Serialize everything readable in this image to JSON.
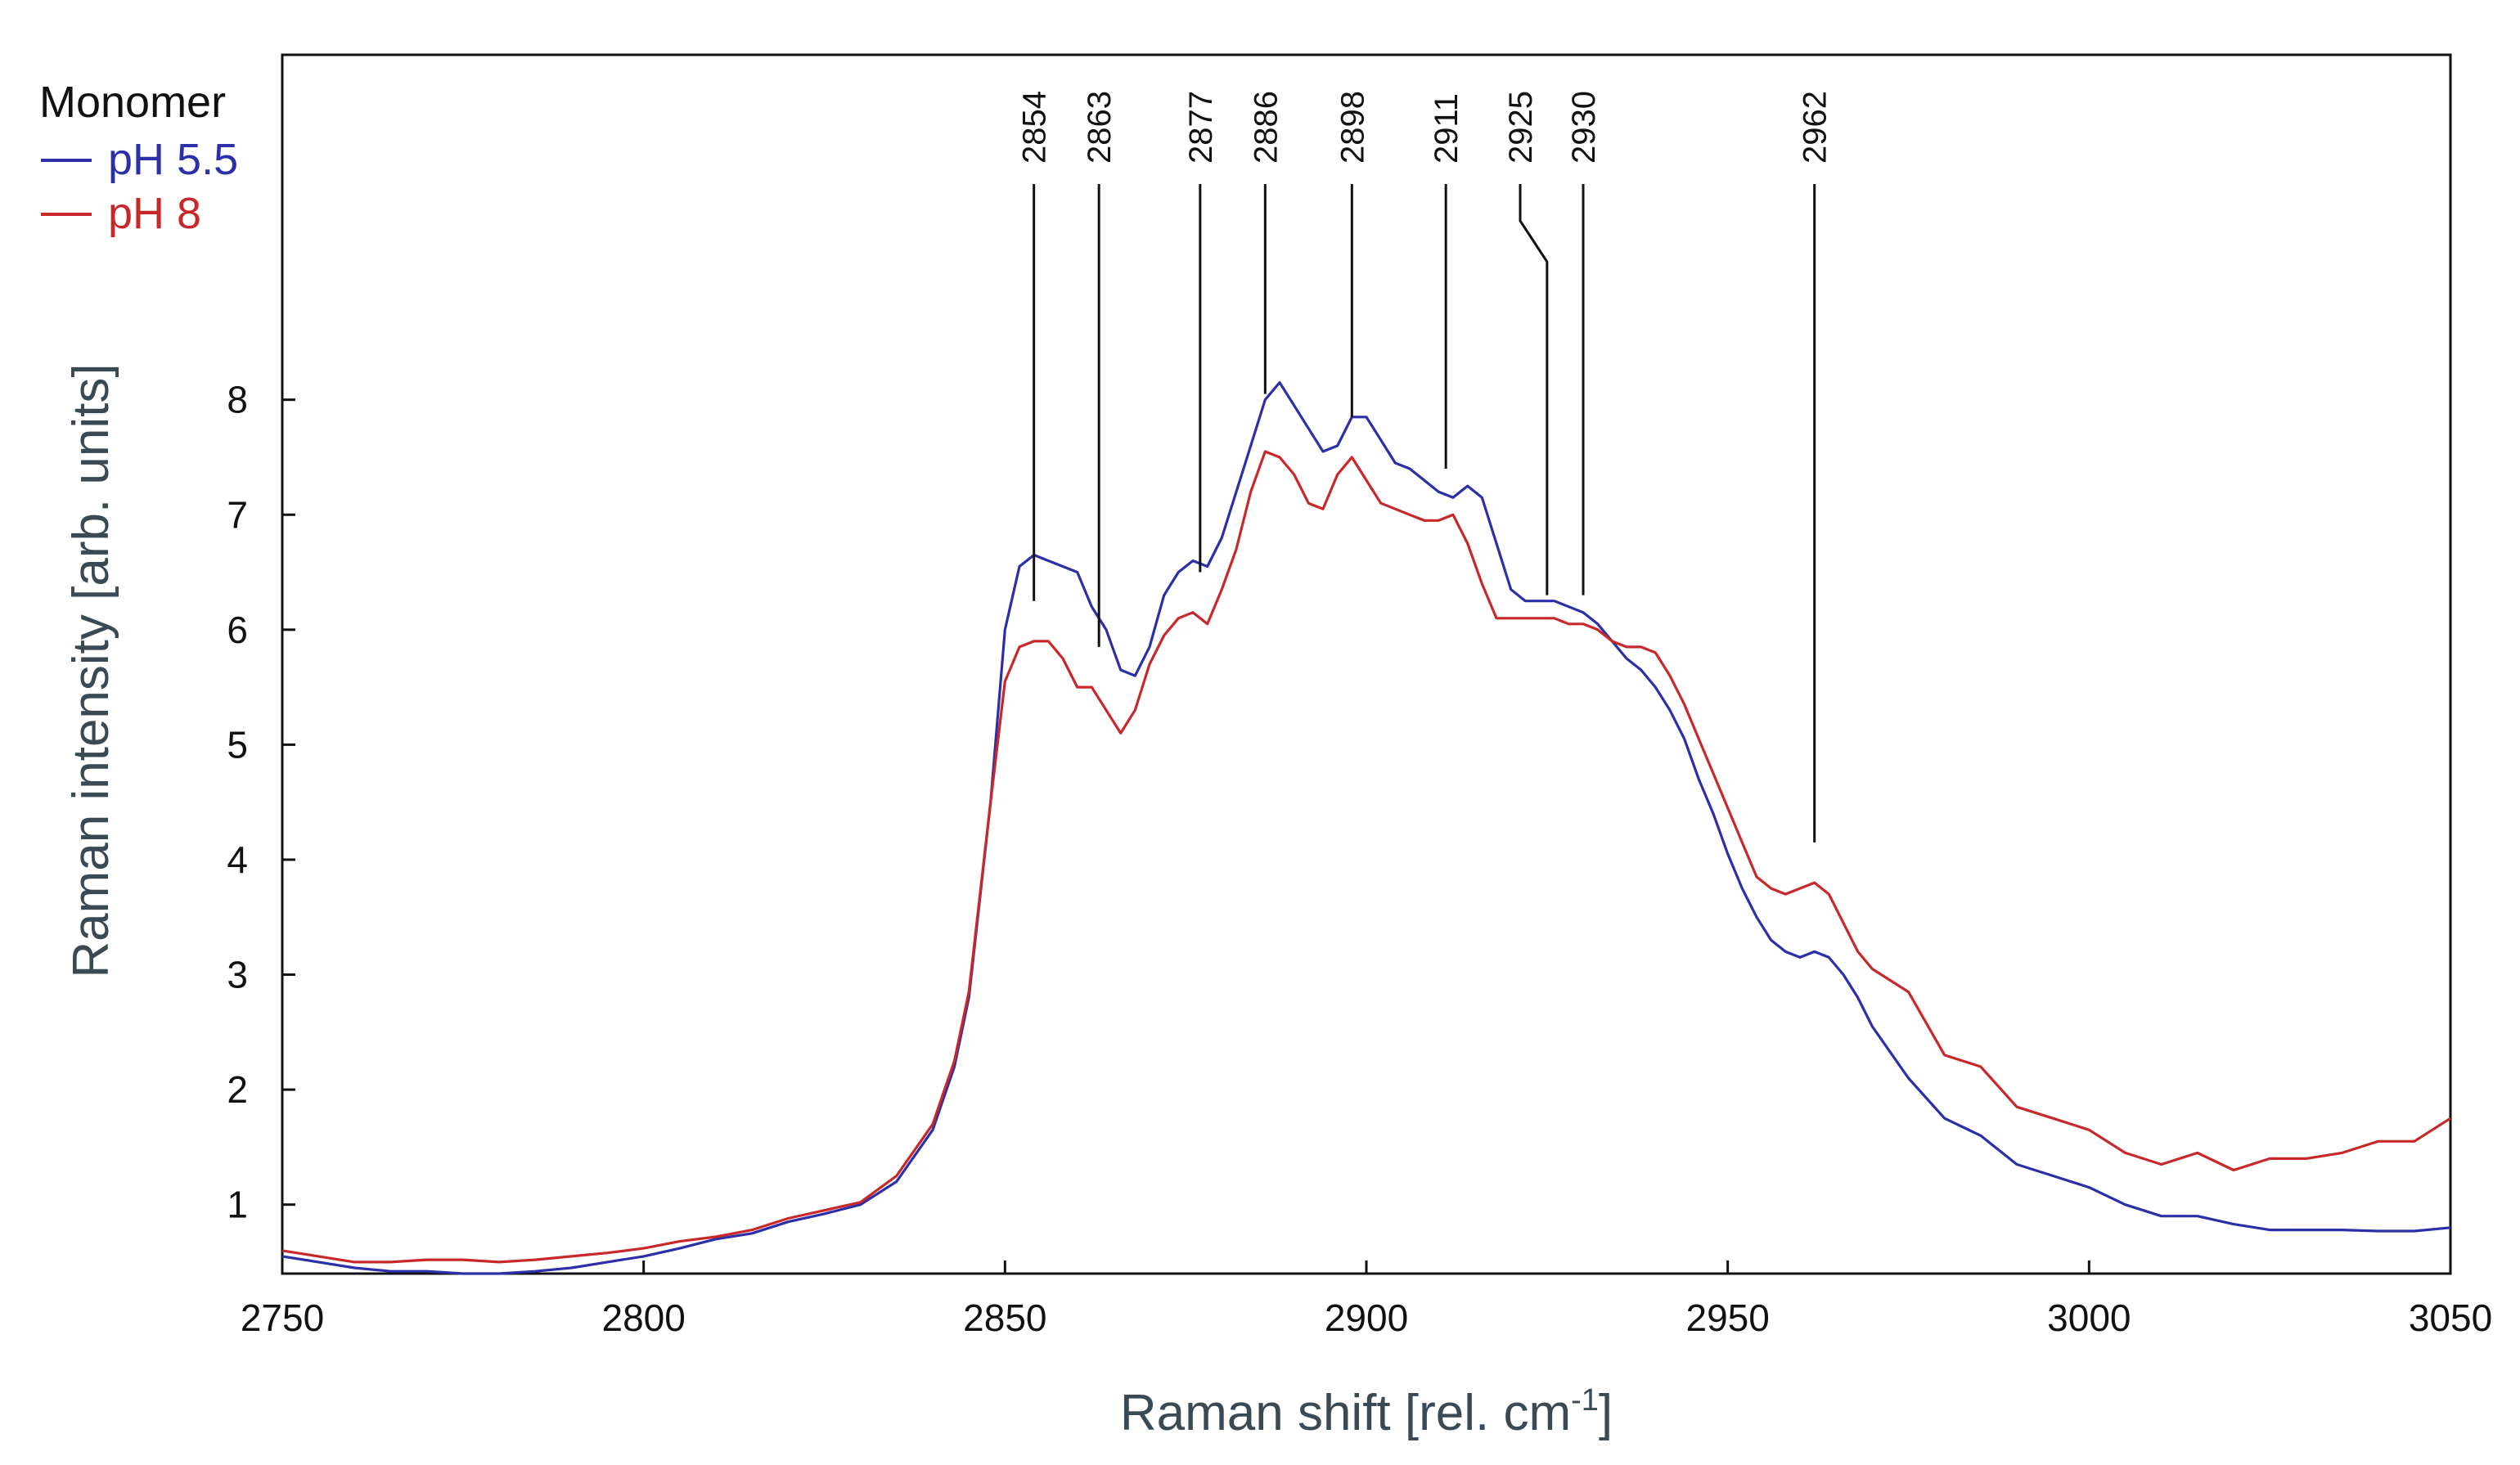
{
  "chart_data": {
    "type": "line",
    "title": "",
    "xlabel": "Raman shift [rel. cm",
    "xlabel_superscript": "-1",
    "xlabel_suffix": "]",
    "ylabel": "Raman intensity [arb. units]",
    "xlim": [
      2750,
      3050
    ],
    "ylim": [
      0.4,
      11.0
    ],
    "xticks": [
      2750,
      2800,
      2850,
      2900,
      2950,
      3000,
      3050
    ],
    "yticks": [
      1,
      2,
      3,
      4,
      5,
      6,
      7,
      8
    ],
    "grid": false,
    "legend": {
      "title": "Monomer",
      "position": "top-left"
    },
    "series": [
      {
        "name": "pH 5.5",
        "color": "#2b2fa8",
        "x": [
          2750,
          2755,
          2760,
          2765,
          2770,
          2775,
          2780,
          2785,
          2790,
          2795,
          2800,
          2805,
          2810,
          2815,
          2820,
          2825,
          2830,
          2835,
          2840,
          2843,
          2845,
          2848,
          2850,
          2852,
          2854,
          2856,
          2858,
          2860,
          2862,
          2864,
          2866,
          2868,
          2870,
          2872,
          2874,
          2876,
          2878,
          2880,
          2882,
          2884,
          2886,
          2888,
          2890,
          2892,
          2894,
          2896,
          2898,
          2900,
          2902,
          2904,
          2906,
          2908,
          2910,
          2912,
          2914,
          2916,
          2918,
          2920,
          2922,
          2924,
          2926,
          2928,
          2930,
          2932,
          2934,
          2936,
          2938,
          2940,
          2942,
          2944,
          2946,
          2948,
          2950,
          2952,
          2954,
          2956,
          2958,
          2960,
          2962,
          2964,
          2966,
          2968,
          2970,
          2975,
          2980,
          2985,
          2990,
          2995,
          3000,
          3005,
          3010,
          3015,
          3020,
          3025,
          3030,
          3035,
          3040,
          3045,
          3050
        ],
        "values": [
          0.55,
          0.5,
          0.45,
          0.42,
          0.42,
          0.4,
          0.4,
          0.42,
          0.45,
          0.5,
          0.55,
          0.62,
          0.7,
          0.75,
          0.85,
          0.92,
          1.0,
          1.2,
          1.65,
          2.2,
          2.8,
          4.5,
          6.0,
          6.55,
          6.65,
          6.6,
          6.55,
          6.5,
          6.2,
          6.0,
          5.65,
          5.6,
          5.85,
          6.3,
          6.5,
          6.6,
          6.55,
          6.8,
          7.2,
          7.6,
          8.0,
          8.15,
          7.95,
          7.75,
          7.55,
          7.6,
          7.85,
          7.85,
          7.65,
          7.45,
          7.4,
          7.3,
          7.2,
          7.15,
          7.25,
          7.15,
          6.75,
          6.35,
          6.25,
          6.25,
          6.25,
          6.2,
          6.15,
          6.05,
          5.9,
          5.75,
          5.65,
          5.5,
          5.3,
          5.05,
          4.7,
          4.4,
          4.05,
          3.75,
          3.5,
          3.3,
          3.2,
          3.15,
          3.2,
          3.15,
          3.0,
          2.8,
          2.55,
          2.1,
          1.75,
          1.6,
          1.35,
          1.25,
          1.15,
          1.0,
          0.9,
          0.9,
          0.83,
          0.78,
          0.78,
          0.78,
          0.77,
          0.77,
          0.8
        ]
      },
      {
        "name": "pH 8",
        "color": "#c8282a",
        "x": [
          2750,
          2755,
          2760,
          2765,
          2770,
          2775,
          2780,
          2785,
          2790,
          2795,
          2800,
          2805,
          2810,
          2815,
          2820,
          2825,
          2830,
          2835,
          2840,
          2843,
          2845,
          2848,
          2850,
          2852,
          2854,
          2856,
          2858,
          2860,
          2862,
          2864,
          2866,
          2868,
          2870,
          2872,
          2874,
          2876,
          2878,
          2880,
          2882,
          2884,
          2886,
          2888,
          2890,
          2892,
          2894,
          2896,
          2898,
          2900,
          2902,
          2904,
          2906,
          2908,
          2910,
          2912,
          2914,
          2916,
          2918,
          2920,
          2922,
          2924,
          2926,
          2928,
          2930,
          2932,
          2934,
          2936,
          2938,
          2940,
          2942,
          2944,
          2946,
          2948,
          2950,
          2952,
          2954,
          2956,
          2958,
          2960,
          2962,
          2964,
          2966,
          2968,
          2970,
          2975,
          2980,
          2985,
          2990,
          2995,
          3000,
          3005,
          3010,
          3015,
          3020,
          3025,
          3030,
          3035,
          3040,
          3045,
          3050
        ],
        "values": [
          0.6,
          0.55,
          0.5,
          0.5,
          0.52,
          0.52,
          0.5,
          0.52,
          0.55,
          0.58,
          0.62,
          0.68,
          0.72,
          0.78,
          0.88,
          0.95,
          1.02,
          1.25,
          1.7,
          2.25,
          2.85,
          4.5,
          5.55,
          5.85,
          5.9,
          5.9,
          5.75,
          5.5,
          5.5,
          5.3,
          5.1,
          5.3,
          5.7,
          5.95,
          6.1,
          6.15,
          6.05,
          6.35,
          6.7,
          7.2,
          7.55,
          7.5,
          7.35,
          7.1,
          7.05,
          7.35,
          7.5,
          7.3,
          7.1,
          7.05,
          7.0,
          6.95,
          6.95,
          7.0,
          6.75,
          6.4,
          6.1,
          6.1,
          6.1,
          6.1,
          6.1,
          6.05,
          6.05,
          6.0,
          5.9,
          5.85,
          5.85,
          5.8,
          5.6,
          5.35,
          5.05,
          4.75,
          4.45,
          4.15,
          3.85,
          3.75,
          3.7,
          3.75,
          3.8,
          3.7,
          3.45,
          3.2,
          3.05,
          2.85,
          2.3,
          2.2,
          1.85,
          1.75,
          1.65,
          1.45,
          1.35,
          1.45,
          1.3,
          1.4,
          1.4,
          1.45,
          1.55,
          1.55,
          1.75
        ]
      }
    ],
    "annotations": [
      {
        "label": "2854",
        "x": 2854,
        "y": 6.25
      },
      {
        "label": "2863",
        "x": 2863,
        "y": 5.85
      },
      {
        "label": "2877",
        "x": 2877,
        "y": 6.5
      },
      {
        "label": "2886",
        "x": 2886,
        "y": 8.05
      },
      {
        "label": "2898",
        "x": 2898,
        "y": 7.85
      },
      {
        "label": "2911",
        "x": 2911,
        "y": 7.4
      },
      {
        "label": "2925",
        "x": 2925,
        "y": 6.3
      },
      {
        "label": "2930",
        "x": 2930,
        "y": 6.3
      },
      {
        "label": "2962",
        "x": 2962,
        "y": 4.15
      }
    ]
  }
}
